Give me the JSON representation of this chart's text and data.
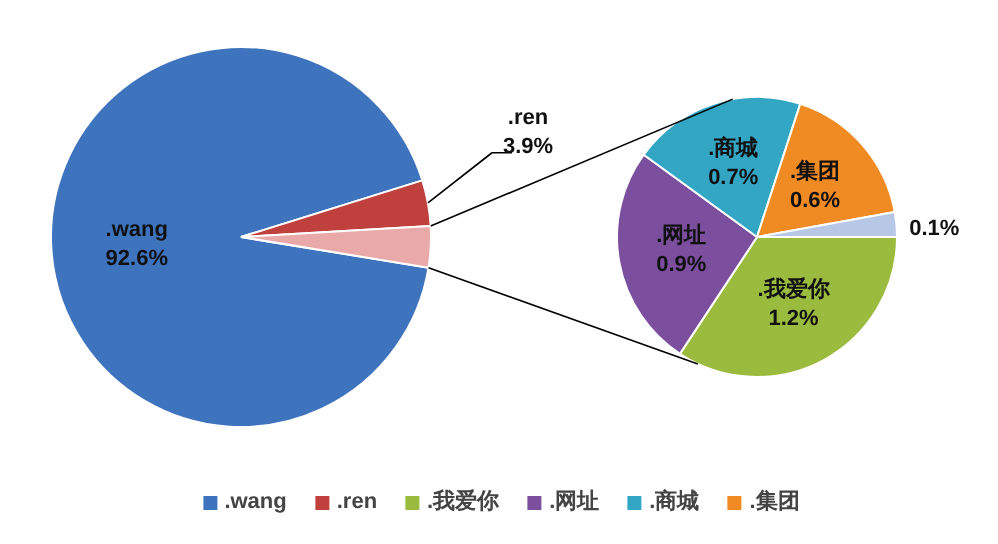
{
  "chart_data": [
    {
      "type": "pie",
      "categories": [
        ".wang",
        ".ren",
        null
      ],
      "values": [
        92.6,
        3.9,
        3.5
      ],
      "value_labels": [
        "92.6%",
        "3.9%",
        null
      ],
      "colors": [
        "#3e73bd",
        "#c0403d",
        "#e9a9a9"
      ],
      "legend": "bottom"
    },
    {
      "type": "pie",
      "categories": [
        ".我爱你",
        ".网址",
        ".商城",
        ".集团",
        null
      ],
      "values": [
        1.2,
        0.9,
        0.7,
        0.6,
        0.1
      ],
      "value_labels": [
        "1.2%",
        "0.9%",
        "0.7%",
        "0.6%",
        "0.1%"
      ],
      "colors": [
        "#9bbb3f",
        "#7b4f9e",
        "#33a6c4",
        "#f08a23",
        "#b6c8e6"
      ],
      "legend": "bottom"
    }
  ]
}
